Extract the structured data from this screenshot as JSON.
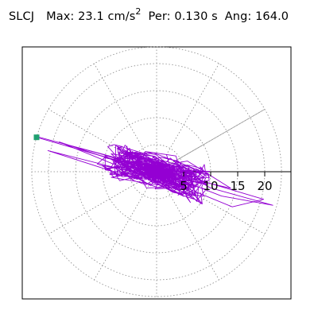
{
  "header": {
    "station": "SLCJ",
    "max_label": "Max:",
    "max_value": "23.1",
    "max_unit_base": "cm/s",
    "max_unit_exp": "2",
    "per_label": "Per:",
    "per_value": "0.130 s",
    "ang_label": "Ang:",
    "ang_value": "164.0"
  },
  "chart_data": {
    "type": "polar-particle-motion",
    "radial_tick_labels": [
      "5",
      "10",
      "15",
      "20"
    ],
    "radial_ticks": [
      5,
      10,
      15,
      20
    ],
    "rmax": 23.1,
    "max_direction_deg": 164.0,
    "grid": "dotted circles and 30-degree radial spokes",
    "colors": {
      "trace": "#9400d3",
      "marker": "#20a070",
      "axes": "#000000",
      "grid": "#888888"
    }
  }
}
